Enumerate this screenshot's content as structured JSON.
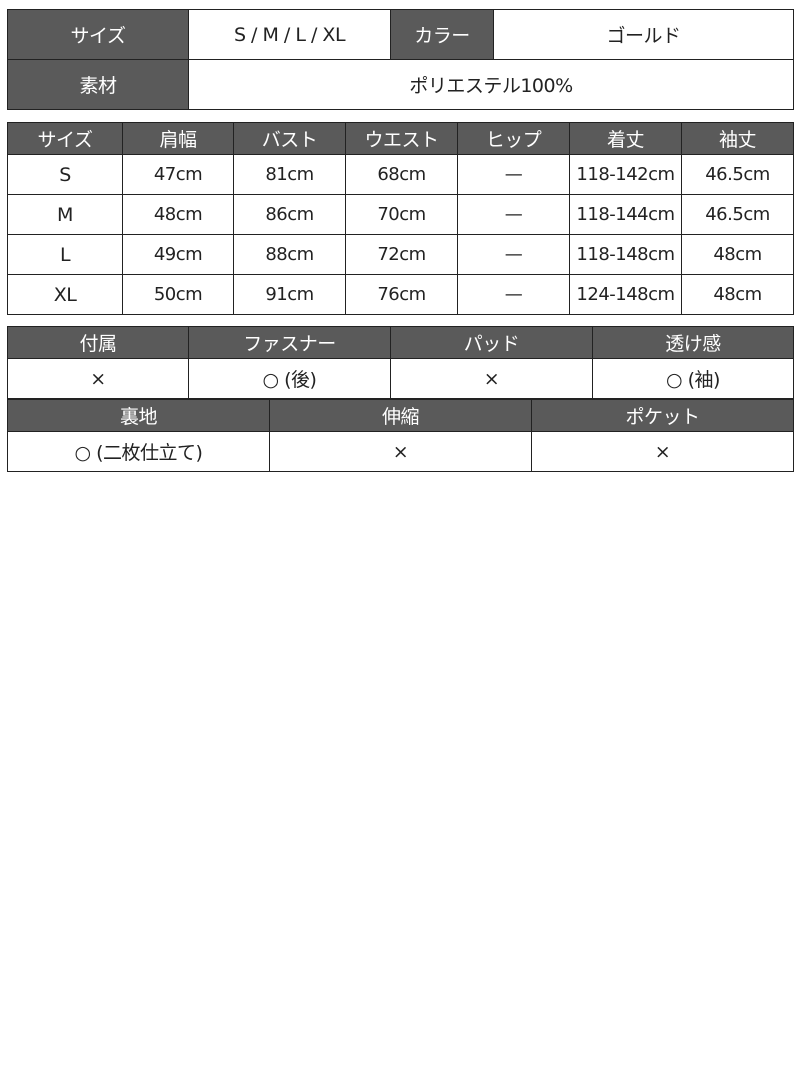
{
  "summary": {
    "size_label": "サイズ",
    "size_value": "S / M / L / XL",
    "color_label": "カラー",
    "color_value": "ゴールド",
    "material_label": "素材",
    "material_value": "ポリエステル100%"
  },
  "size_table": {
    "headers": [
      "サイズ",
      "肩幅",
      "バスト",
      "ウエスト",
      "ヒップ",
      "着丈",
      "袖丈"
    ],
    "rows": [
      [
        "S",
        "47cm",
        "81cm",
        "68cm",
        "—",
        "118-142cm",
        "46.5cm"
      ],
      [
        "M",
        "48cm",
        "86cm",
        "70cm",
        "—",
        "118-144cm",
        "46.5cm"
      ],
      [
        "L",
        "49cm",
        "88cm",
        "72cm",
        "—",
        "118-148cm",
        "48cm"
      ],
      [
        "XL",
        "50cm",
        "91cm",
        "76cm",
        "—",
        "124-148cm",
        "48cm"
      ]
    ]
  },
  "details1": {
    "headers": [
      "付属",
      "ファスナー",
      "パッド",
      "透け感"
    ],
    "values": [
      "×",
      "○ (後)",
      "×",
      "○ (袖)"
    ]
  },
  "details2": {
    "headers": [
      "裏地",
      "伸縮",
      "ポケット"
    ],
    "values": [
      "○ (二枚仕立て)",
      "×",
      "×"
    ]
  },
  "colors": {
    "header_bg": "#5a5a5a",
    "header_text": "#ffffff",
    "border": "#222222"
  }
}
